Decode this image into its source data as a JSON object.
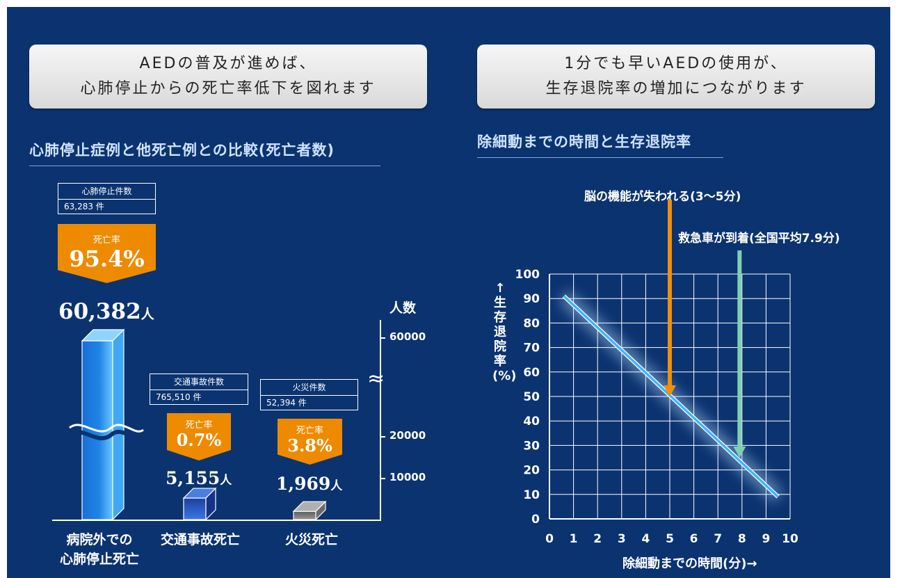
{
  "banners": {
    "left": [
      "AEDの普及が進めば、",
      "心肺停止からの死亡率低下を図れます"
    ],
    "right": [
      "1分でも早いAEDの使用が、",
      "生存退院率の増加につながります"
    ]
  },
  "left_chart": {
    "section_title": "心肺停止症例と他死亡例との比較(死亡者数)",
    "axis_unit": "人数",
    "axis_break_symbol": "≈",
    "unit_suffix": "人",
    "rate_label": "死亡率",
    "bar_break_symbol": "≈"
  },
  "right_chart": {
    "section_title": "除細動までの時間と生存退院率",
    "xlabel": "除細動までの時間(分)→",
    "ylabel": "↑生存退院率(%)",
    "annotation_brain": "脳の機能が失われる(3〜5分)",
    "annotation_ambulance": "救急車が到着(全国平均7.9分)"
  },
  "chart_data": [
    {
      "type": "bar",
      "categories": [
        "病院外での心肺停止死亡",
        "交通事故死亡",
        "火災死亡"
      ],
      "category_lines": [
        [
          "病院外での",
          "心肺停止死亡"
        ],
        [
          "交通事故死亡"
        ],
        [
          "火災死亡"
        ]
      ],
      "values": [
        60382,
        5155,
        1969
      ],
      "value_labels": [
        "60,382",
        "5,155",
        "1,969"
      ],
      "case_labels": [
        "心肺停止件数",
        "交通事故件数",
        "火災件数"
      ],
      "case_counts": [
        "63,283 件",
        "765,510 件",
        "52,394 件"
      ],
      "death_rates": [
        "95.4%",
        "0.7%",
        "3.8%"
      ],
      "yticks": [
        10000,
        20000,
        60000
      ],
      "ytick_labels": [
        "10000",
        "20000",
        "60000"
      ],
      "ylabel": "人数",
      "axis_break": true,
      "colors": {
        "bar1": "#1e84e6",
        "bar2": "#2a5fd0",
        "bar3": "#777777",
        "rate_badge": "#ee8a00"
      }
    },
    {
      "type": "line",
      "x": [
        0.6,
        9.5
      ],
      "y": [
        91,
        9
      ],
      "xlim": [
        0,
        10
      ],
      "ylim": [
        0,
        100
      ],
      "xticks": [
        0,
        1,
        2,
        3,
        4,
        5,
        6,
        7,
        8,
        9,
        10
      ],
      "yticks": [
        0,
        10,
        20,
        30,
        40,
        50,
        60,
        70,
        80,
        90,
        100
      ],
      "xlabel": "除細動までの時間(分)→",
      "ylabel": "↑生存退院率(%)",
      "grid": true,
      "markers": [
        {
          "x": 5,
          "label": "脳の機能が失われる(3〜5分)",
          "color": "#f0900a"
        },
        {
          "x": 7.9,
          "label": "救急車が到着(全国平均7.9分)",
          "color": "#7fd0b0"
        }
      ],
      "colors": {
        "line": "#3fb4ff",
        "grid": "#ffffff"
      }
    }
  ]
}
